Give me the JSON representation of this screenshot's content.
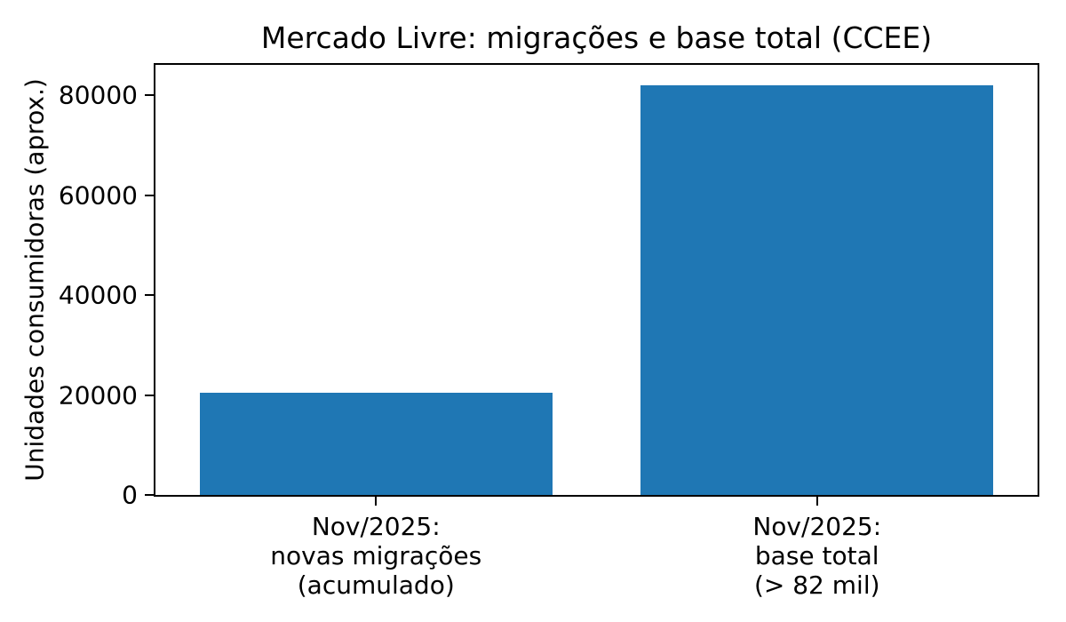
{
  "chart_data": {
    "type": "bar",
    "title": "Mercado Livre: migrações e base total (CCEE)",
    "ylabel": "Unidades consumidoras (aprox.)",
    "categories": [
      "Nov/2025:\nnovas migrações\n(acumulado)",
      "Nov/2025:\nbase total\n(> 82 mil)"
    ],
    "values": [
      20500,
      82000
    ],
    "yticks": [
      0,
      20000,
      40000,
      60000,
      80000
    ],
    "ylim": [
      0,
      86100
    ],
    "bar_color": "#1f77b4",
    "grid": false,
    "legend": "none"
  }
}
